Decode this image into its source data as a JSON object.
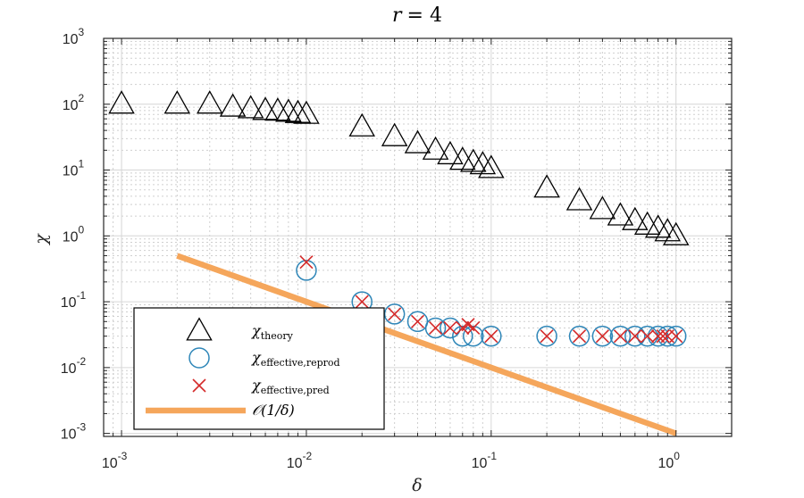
{
  "chart_data": {
    "type": "scatter",
    "title": "r = 4",
    "title_var": "r",
    "title_val": "= 4",
    "xlabel": "δ",
    "ylabel": "χ",
    "xscale": "log",
    "yscale": "log",
    "xlim": [
      0.0008,
      2.0
    ],
    "ylim": [
      0.0009,
      1000
    ],
    "grid": true,
    "minor_grid": true,
    "legend_position": "bottom-left",
    "x_ticks": [
      {
        "value": 0.001,
        "base": "10",
        "exp": "-3"
      },
      {
        "value": 0.01,
        "base": "10",
        "exp": "-2"
      },
      {
        "value": 0.1,
        "base": "10",
        "exp": "-1"
      },
      {
        "value": 1,
        "base": "10",
        "exp": "0"
      }
    ],
    "y_ticks": [
      {
        "value": 0.001,
        "base": "10",
        "exp": "-3"
      },
      {
        "value": 0.01,
        "base": "10",
        "exp": "-2"
      },
      {
        "value": 0.1,
        "base": "10",
        "exp": "-1"
      },
      {
        "value": 1,
        "base": "10",
        "exp": "0"
      },
      {
        "value": 10,
        "base": "10",
        "exp": "1"
      },
      {
        "value": 100,
        "base": "10",
        "exp": "2"
      },
      {
        "value": 1000,
        "base": "10",
        "exp": "3"
      }
    ],
    "series": [
      {
        "name": "χ_theory",
        "legend_main": "χ",
        "legend_sub": "theory",
        "marker": "triangle",
        "color": "#000000",
        "x": [
          0.001,
          0.002,
          0.003,
          0.004,
          0.005,
          0.006,
          0.007,
          0.008,
          0.009,
          0.01,
          0.02,
          0.03,
          0.04,
          0.05,
          0.06,
          0.07,
          0.08,
          0.09,
          0.1,
          0.2,
          0.3,
          0.4,
          0.5,
          0.6,
          0.7,
          0.8,
          0.9,
          1.0
        ],
        "y": [
          100,
          100,
          100,
          90,
          85,
          80,
          78,
          75,
          72,
          70,
          45,
          32,
          25,
          20,
          17,
          14,
          13,
          12,
          10.5,
          5.3,
          3.4,
          2.5,
          2.0,
          1.7,
          1.45,
          1.3,
          1.15,
          1.0
        ]
      },
      {
        "name": "χ_effective,reprod",
        "legend_main": "χ",
        "legend_sub": "effective,reprod",
        "marker": "circle",
        "color": "#2e86b8",
        "x": [
          0.01,
          0.02,
          0.03,
          0.04,
          0.05,
          0.06,
          0.07,
          0.08,
          0.1,
          0.2,
          0.3,
          0.4,
          0.5,
          0.6,
          0.7,
          0.8,
          0.9,
          1.0
        ],
        "y": [
          0.3,
          0.1,
          0.065,
          0.05,
          0.04,
          0.04,
          0.03,
          0.03,
          0.03,
          0.03,
          0.03,
          0.03,
          0.03,
          0.03,
          0.03,
          0.03,
          0.03,
          0.03
        ]
      },
      {
        "name": "χ_effective,pred",
        "legend_main": "χ",
        "legend_sub": "effective,pred",
        "marker": "x",
        "color": "#d42a2a",
        "x": [
          0.01,
          0.02,
          0.03,
          0.04,
          0.05,
          0.06,
          0.07,
          0.075,
          0.08,
          0.1,
          0.2,
          0.3,
          0.4,
          0.5,
          0.6,
          0.7,
          0.8,
          0.85,
          0.9,
          1.0
        ],
        "y": [
          0.4,
          0.1,
          0.065,
          0.05,
          0.04,
          0.04,
          0.04,
          0.045,
          0.04,
          0.03,
          0.03,
          0.03,
          0.03,
          0.03,
          0.03,
          0.03,
          0.03,
          0.03,
          0.03,
          0.03
        ]
      },
      {
        "name": "O(1/δ)",
        "legend_main": "𝒪(1/δ)",
        "legend_sub": "",
        "marker": "line",
        "color": "#f5a65b",
        "x": [
          0.002,
          1.0
        ],
        "y": [
          0.5,
          0.001
        ]
      }
    ]
  }
}
